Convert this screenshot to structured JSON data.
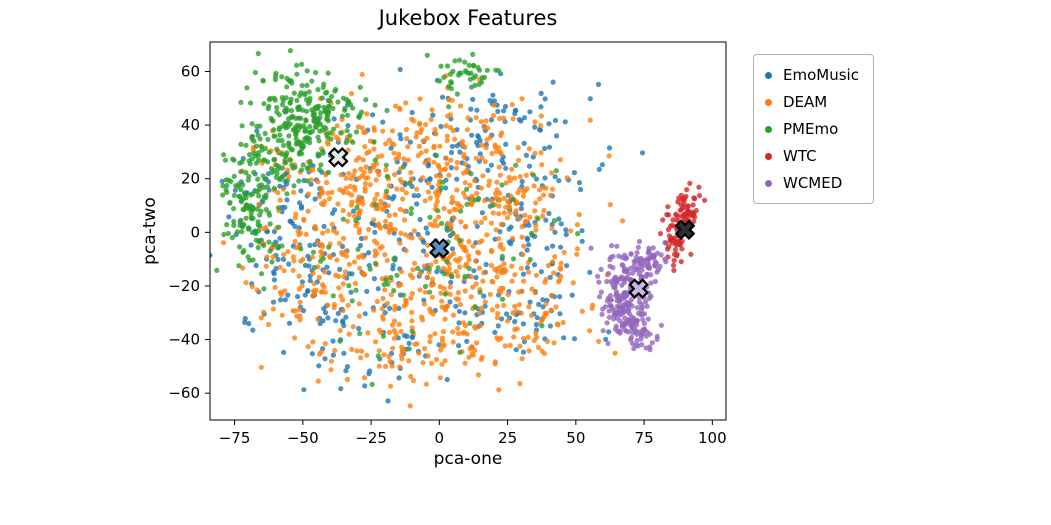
{
  "chart_data": {
    "type": "scatter",
    "title": "Jukebox Features",
    "xlabel": "pca-one",
    "ylabel": "pca-two",
    "xdomain": [
      -84,
      105
    ],
    "ydomain": [
      -70,
      71
    ],
    "xticks": [
      -75,
      -50,
      -25,
      0,
      25,
      50,
      75,
      100
    ],
    "yticks": [
      -60,
      -40,
      -20,
      0,
      20,
      40,
      60
    ],
    "grid": false,
    "legend_position": "outside-right",
    "point_alpha": 0.8,
    "series": [
      {
        "name": "EmoMusic",
        "color": "#1f77b4",
        "clusters": [
          [
            150,
            -10,
            8,
            30,
            20
          ],
          [
            80,
            -45,
            -20,
            16,
            13
          ],
          [
            70,
            18,
            -28,
            18,
            12
          ],
          [
            70,
            8,
            32,
            22,
            11
          ],
          [
            50,
            -62,
            12,
            10,
            14
          ],
          [
            40,
            35,
            5,
            10,
            14
          ],
          [
            30,
            -20,
            -45,
            20,
            7
          ],
          [
            30,
            25,
            45,
            12,
            7
          ]
        ]
      },
      {
        "name": "DEAM",
        "color": "#ff7f0e",
        "clusters": [
          [
            280,
            -8,
            -6,
            26,
            18
          ],
          [
            180,
            -28,
            22,
            20,
            13
          ],
          [
            140,
            15,
            -30,
            20,
            11
          ],
          [
            120,
            22,
            15,
            16,
            13
          ],
          [
            80,
            -48,
            -12,
            14,
            12
          ],
          [
            60,
            -12,
            -45,
            20,
            7
          ],
          [
            60,
            5,
            40,
            18,
            8
          ]
        ]
      },
      {
        "name": "PMEmo",
        "color": "#2ca02c",
        "clusters": [
          [
            230,
            -48,
            43,
            10,
            8
          ],
          [
            140,
            -69,
            10,
            6,
            13
          ],
          [
            60,
            -59,
            27,
            8,
            7
          ],
          [
            40,
            10,
            60,
            6,
            4
          ],
          [
            90,
            -5,
            0,
            28,
            22
          ]
        ]
      },
      {
        "name": "WTC",
        "color": "#d62728",
        "clusters": [
          [
            35,
            91,
            9,
            2.5,
            4
          ],
          [
            35,
            88,
            2,
            2.5,
            4
          ],
          [
            25,
            85,
            -5,
            2.5,
            3.5
          ]
        ]
      },
      {
        "name": "WCMED",
        "color": "#9467bd",
        "clusters": [
          [
            110,
            67,
            -27,
            4,
            6
          ],
          [
            55,
            73,
            -17,
            3,
            4.5
          ],
          [
            40,
            78,
            -10,
            2.5,
            3.5
          ],
          [
            45,
            71,
            -34,
            3.5,
            4
          ],
          [
            25,
            64,
            -13,
            3,
            4
          ],
          [
            15,
            76,
            -38,
            2.5,
            3
          ]
        ]
      }
    ],
    "centroid_markers": [
      {
        "x": -37,
        "y": 28,
        "fill": "#e3e8e3"
      },
      {
        "x": 0,
        "y": -6,
        "fill": "#5a8fc0"
      },
      {
        "x": 73,
        "y": -21,
        "fill": "#c9b6e4"
      },
      {
        "x": 90,
        "y": 1,
        "fill": "#303030"
      }
    ]
  }
}
